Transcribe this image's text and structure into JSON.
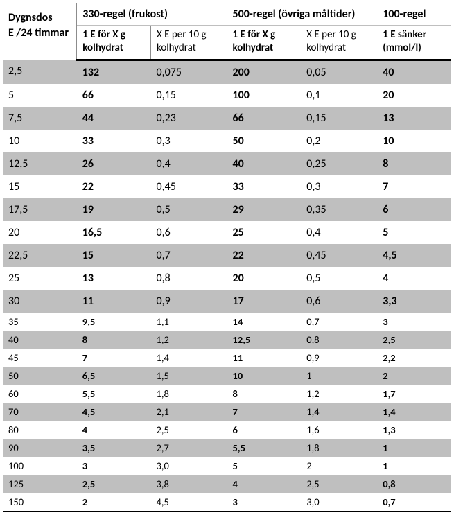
{
  "header": {
    "dygnsdos_line1": "Dygnsdos",
    "dygnsdos_line2": "E /24 timmar",
    "g330": "330-regel (frukost)",
    "g500": "500-regel (övriga måltider)",
    "g100": "100-regel",
    "sub_1e_xg_l1": "1 E för X g",
    "sub_1e_xg_l2": "kolhydrat",
    "sub_xe10_l1": "X E per 10 g",
    "sub_xe10_l2": "kolhydrat",
    "sub_sanker_l1": "1 E sänker",
    "sub_sanker_l2": "(mmol/l)"
  },
  "rows": [
    {
      "d": "2,5",
      "a": "132",
      "b": "0,075",
      "c": "200",
      "e": "0,05",
      "f": "40",
      "shade": true,
      "big": true
    },
    {
      "d": "5",
      "a": "66",
      "b": "0,15",
      "c": "100",
      "e": "0,1",
      "f": "20",
      "shade": false,
      "big": true
    },
    {
      "d": "7,5",
      "a": "44",
      "b": "0,23",
      "c": "66",
      "e": "0,15",
      "f": "13",
      "shade": true,
      "big": true
    },
    {
      "d": "10",
      "a": "33",
      "b": "0,3",
      "c": "50",
      "e": "0,2",
      "f": "10",
      "shade": false,
      "big": true
    },
    {
      "d": "12,5",
      "a": "26",
      "b": "0,4",
      "c": "40",
      "e": "0,25",
      "f": "8",
      "shade": true,
      "big": true
    },
    {
      "d": "15",
      "a": "22",
      "b": "0,45",
      "c": "33",
      "e": "0,3",
      "f": "7",
      "shade": false,
      "big": true
    },
    {
      "d": "17,5",
      "a": "19",
      "b": "0,5",
      "c": "29",
      "e": "0,35",
      "f": "6",
      "shade": true,
      "big": true
    },
    {
      "d": "20",
      "a": "16,5",
      "b": "0,6",
      "c": "25",
      "e": "0,4",
      "f": "5",
      "shade": false,
      "big": true
    },
    {
      "d": "22,5",
      "a": "15",
      "b": "0,7",
      "c": "22",
      "e": "0,45",
      "f": "4,5",
      "shade": true,
      "big": true
    },
    {
      "d": "25",
      "a": "13",
      "b": "0,8",
      "c": "20",
      "e": "0,5",
      "f": "4",
      "shade": false,
      "big": true
    },
    {
      "d": "30",
      "a": "11",
      "b": "0,9",
      "c": "17",
      "e": "0,6",
      "f": "3,3",
      "shade": true,
      "big": true
    },
    {
      "d": "35",
      "a": "9,5",
      "b": "1,1",
      "c": "14",
      "e": "0,7",
      "f": "3",
      "shade": false,
      "big": false
    },
    {
      "d": "40",
      "a": "8",
      "b": "1,2",
      "c": "12,5",
      "e": "0,8",
      "f": "2,5",
      "shade": true,
      "big": false
    },
    {
      "d": "45",
      "a": "7",
      "b": "1,4",
      "c": "11",
      "e": "0,9",
      "f": "2,2",
      "shade": false,
      "big": false
    },
    {
      "d": "50",
      "a": "6,5",
      "b": "1,5",
      "c": "10",
      "e": "1",
      "f": "2",
      "shade": true,
      "big": false
    },
    {
      "d": "60",
      "a": "5,5",
      "b": "1,8",
      "c": "8",
      "e": "1,2",
      "f": "1,7",
      "shade": false,
      "big": false
    },
    {
      "d": "70",
      "a": "4,5",
      "b": "2,1",
      "c": "7",
      "e": "1,4",
      "f": "1,4",
      "shade": true,
      "big": false
    },
    {
      "d": "80",
      "a": "4",
      "b": "2,5",
      "c": "6",
      "e": "1,6",
      "f": "1,3",
      "shade": false,
      "big": false
    },
    {
      "d": "90",
      "a": "3,5",
      "b": "2,7",
      "c": "5,5",
      "e": "1,8",
      "f": "1",
      "shade": true,
      "big": false
    },
    {
      "d": "100",
      "a": "3",
      "b": "3,0",
      "c": "5",
      "e": "2",
      "f": "1",
      "shade": false,
      "big": false
    },
    {
      "d": "125",
      "a": "2,5",
      "b": "3,8",
      "c": "4",
      "e": "2,5",
      "f": "0,8",
      "shade": true,
      "big": false
    },
    {
      "d": "150",
      "a": "2",
      "b": "4,5",
      "c": "3",
      "e": "3,0",
      "f": "0,7",
      "shade": false,
      "big": false
    }
  ]
}
